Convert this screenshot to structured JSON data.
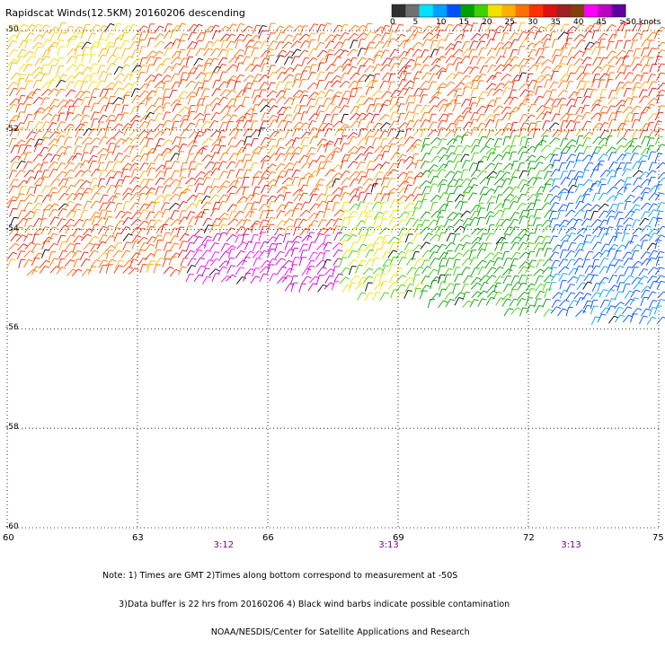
{
  "title": "Rapidscat Winds(12.5KM) 20160206 descending",
  "legend": {
    "labels": [
      "0",
      "5",
      "10",
      "15",
      "20",
      "25",
      "30",
      "35",
      "40",
      "45",
      ">50 knots"
    ],
    "colors": [
      "#303030",
      "#707070",
      "#00e0ff",
      "#00a0ff",
      "#0050ff",
      "#00a000",
      "#40d000",
      "#f0e000",
      "#ffb000",
      "#ff7000",
      "#ff3000",
      "#e01010",
      "#a02020",
      "#804010",
      "#ff00ff",
      "#c000c0",
      "#6000a0"
    ]
  },
  "map": {
    "lon_range": [
      60,
      75
    ],
    "lat_range": [
      -60,
      -50
    ],
    "lon_labels": [
      "60",
      "63",
      "66",
      "69",
      "72",
      "75"
    ],
    "lat_labels": [
      "-50",
      "-52",
      "-54",
      "-56",
      "-58",
      "-60"
    ],
    "pass_times": [
      {
        "lon": 65,
        "text": "3:12"
      },
      {
        "lon": 68.8,
        "text": "3:13"
      },
      {
        "lon": 73,
        "text": "3:13"
      }
    ],
    "swath_bottom_edge": [
      [
        60,
        -54.9
      ],
      [
        63,
        -55.0
      ],
      [
        66,
        -55.2
      ],
      [
        69,
        -55.5
      ],
      [
        72,
        -55.8
      ],
      [
        75,
        -56.0
      ]
    ]
  },
  "note": [
    "Note: 1) Times are GMT 2)Times along bottom correspond to measurement at -50S",
    "      3)Data buffer is 22 hrs from 20160206 4) Black wind barbs indicate possible contamination",
    "                                        NOAA/NESDIS/Center for Satellite Applications and Research"
  ]
}
